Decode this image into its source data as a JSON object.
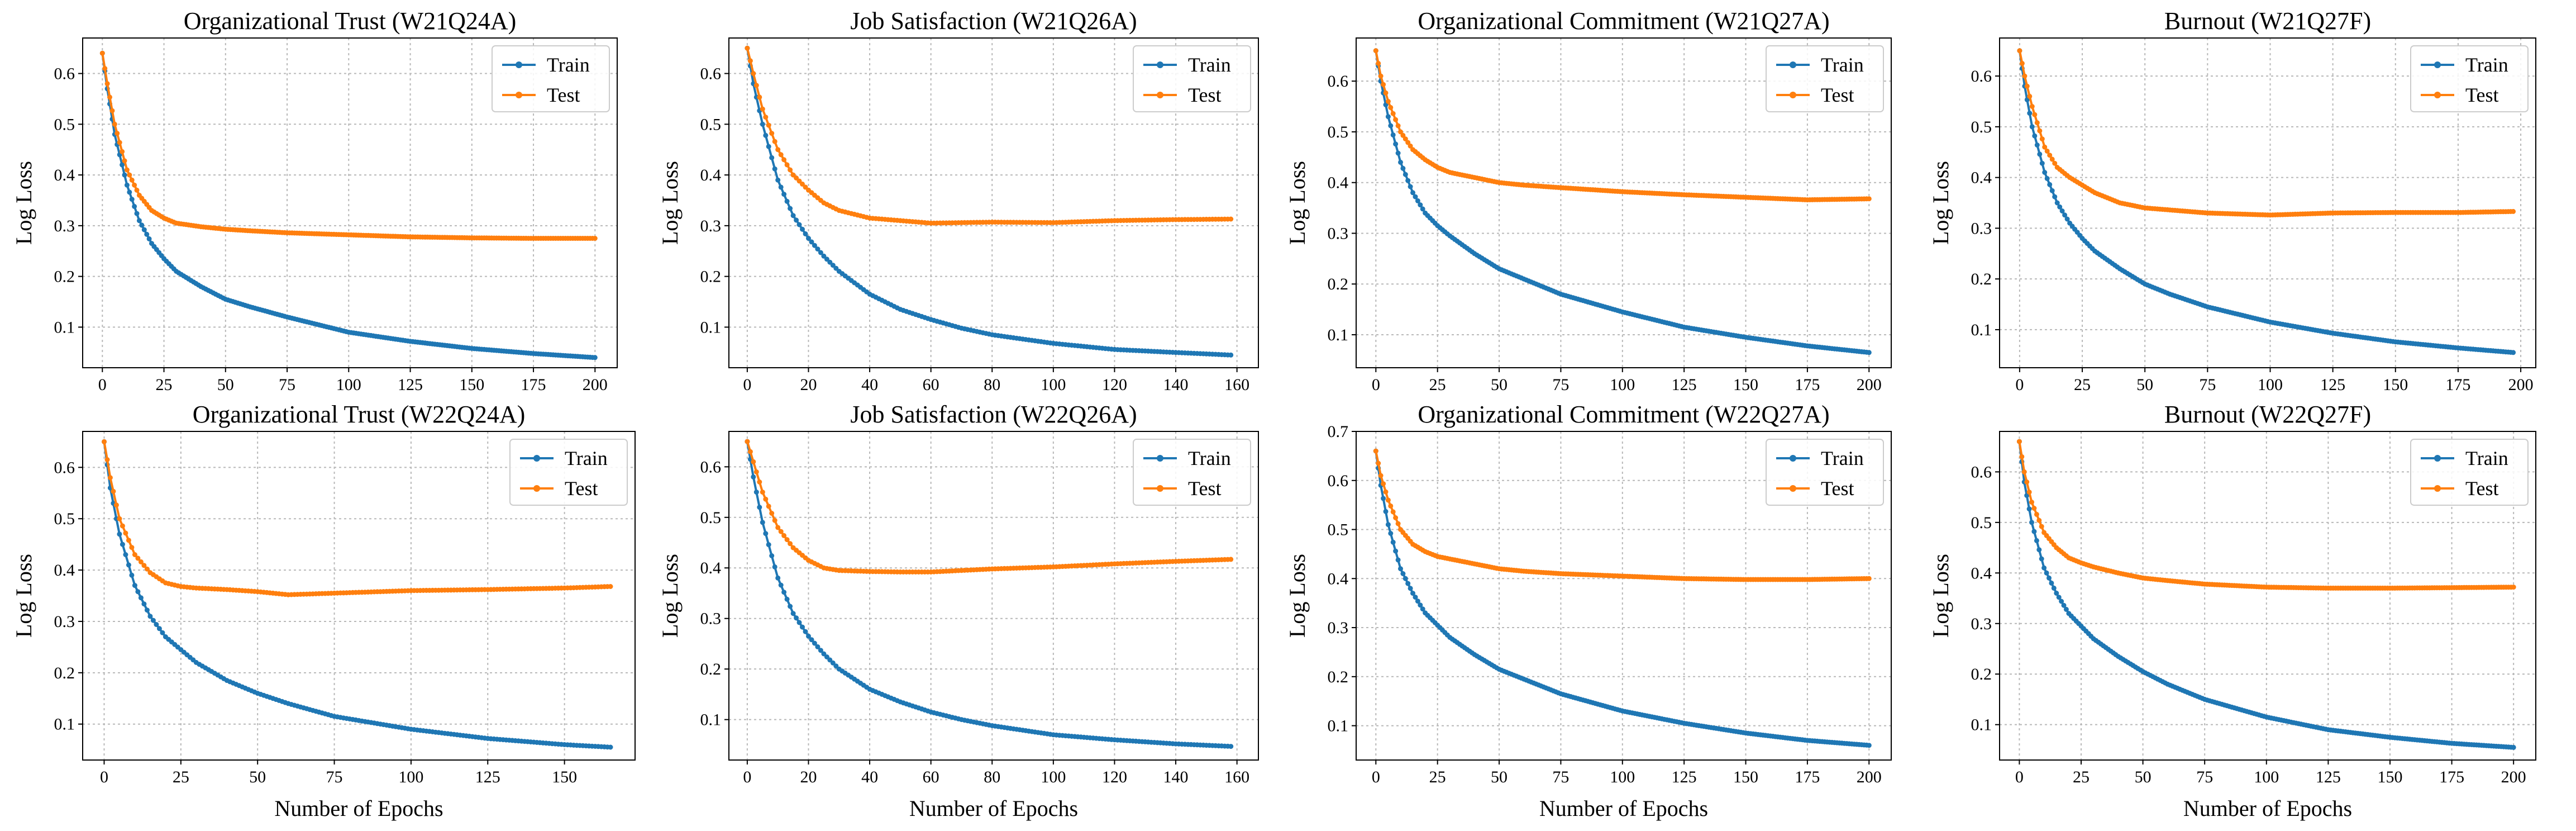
{
  "colors": {
    "train": "#1f77b4",
    "test": "#ff7f0e",
    "grid": "#b8b8b8"
  },
  "chart_data": [
    {
      "type": "line",
      "title": "Organizational Trust (W21Q24A)",
      "xlabel": "",
      "ylabel": "Log Loss",
      "xlim": [
        -8,
        209
      ],
      "ylim": [
        0.02,
        0.67
      ],
      "xticks": [
        0,
        25,
        50,
        75,
        100,
        125,
        150,
        175,
        200
      ],
      "yticks": [
        0.1,
        0.2,
        0.3,
        0.4,
        0.5,
        0.6
      ],
      "grid": true,
      "legend": "top-right",
      "series": [
        {
          "name": "Train",
          "x": [
            0,
            2,
            5,
            10,
            15,
            20,
            25,
            30,
            40,
            50,
            60,
            75,
            100,
            125,
            150,
            175,
            200
          ],
          "values": [
            0.64,
            0.57,
            0.48,
            0.38,
            0.31,
            0.265,
            0.235,
            0.21,
            0.18,
            0.155,
            0.14,
            0.12,
            0.09,
            0.072,
            0.058,
            0.048,
            0.04
          ]
        },
        {
          "name": "Test",
          "x": [
            0,
            2,
            5,
            10,
            15,
            20,
            25,
            30,
            40,
            50,
            60,
            75,
            100,
            125,
            150,
            175,
            200
          ],
          "values": [
            0.64,
            0.58,
            0.5,
            0.41,
            0.36,
            0.33,
            0.315,
            0.305,
            0.298,
            0.293,
            0.29,
            0.286,
            0.282,
            0.278,
            0.276,
            0.275,
            0.275
          ]
        }
      ]
    },
    {
      "type": "line",
      "title": "Job Satisfaction (W21Q26A)",
      "xlabel": "",
      "ylabel": "Log Loss",
      "xlim": [
        -6,
        167
      ],
      "ylim": [
        0.02,
        0.67
      ],
      "xticks": [
        0,
        20,
        40,
        60,
        80,
        100,
        120,
        140,
        160
      ],
      "yticks": [
        0.1,
        0.2,
        0.3,
        0.4,
        0.5,
        0.6
      ],
      "grid": true,
      "legend": "top-right",
      "series": [
        {
          "name": "Train",
          "x": [
            0,
            2,
            5,
            10,
            15,
            20,
            25,
            30,
            40,
            50,
            60,
            70,
            80,
            100,
            120,
            140,
            158
          ],
          "values": [
            0.65,
            0.58,
            0.5,
            0.39,
            0.32,
            0.275,
            0.24,
            0.21,
            0.165,
            0.135,
            0.115,
            0.098,
            0.085,
            0.068,
            0.056,
            0.05,
            0.045
          ]
        },
        {
          "name": "Test",
          "x": [
            0,
            2,
            5,
            10,
            15,
            20,
            25,
            30,
            40,
            50,
            60,
            70,
            80,
            100,
            120,
            140,
            158
          ],
          "values": [
            0.65,
            0.6,
            0.53,
            0.45,
            0.4,
            0.37,
            0.345,
            0.33,
            0.315,
            0.31,
            0.305,
            0.306,
            0.307,
            0.306,
            0.31,
            0.312,
            0.313
          ]
        }
      ]
    },
    {
      "type": "line",
      "title": "Organizational Commitment (W21Q27A)",
      "xlabel": "",
      "ylabel": "Log Loss",
      "xlim": [
        -8,
        209
      ],
      "ylim": [
        0.035,
        0.685
      ],
      "xticks": [
        0,
        25,
        50,
        75,
        100,
        125,
        150,
        175,
        200
      ],
      "yticks": [
        0.1,
        0.2,
        0.3,
        0.4,
        0.5,
        0.6
      ],
      "grid": true,
      "legend": "top-right",
      "series": [
        {
          "name": "Train",
          "x": [
            0,
            2,
            5,
            10,
            15,
            20,
            25,
            30,
            40,
            50,
            60,
            75,
            100,
            125,
            150,
            175,
            200
          ],
          "values": [
            0.66,
            0.6,
            0.53,
            0.44,
            0.38,
            0.34,
            0.315,
            0.295,
            0.26,
            0.23,
            0.21,
            0.18,
            0.145,
            0.115,
            0.095,
            0.078,
            0.065
          ]
        },
        {
          "name": "Test",
          "x": [
            0,
            2,
            5,
            10,
            15,
            20,
            25,
            30,
            40,
            50,
            60,
            75,
            100,
            125,
            150,
            175,
            200
          ],
          "values": [
            0.66,
            0.61,
            0.56,
            0.5,
            0.465,
            0.445,
            0.43,
            0.42,
            0.41,
            0.4,
            0.395,
            0.39,
            0.382,
            0.376,
            0.371,
            0.366,
            0.368
          ]
        }
      ]
    },
    {
      "type": "line",
      "title": "Burnout (W21Q27F)",
      "xlabel": "",
      "ylabel": "Log Loss",
      "xlim": [
        -8,
        206
      ],
      "ylim": [
        0.025,
        0.675
      ],
      "xticks": [
        0,
        25,
        50,
        75,
        100,
        125,
        150,
        175,
        200
      ],
      "yticks": [
        0.1,
        0.2,
        0.3,
        0.4,
        0.5,
        0.6
      ],
      "grid": true,
      "legend": "top-right",
      "series": [
        {
          "name": "Train",
          "x": [
            0,
            2,
            5,
            10,
            15,
            20,
            25,
            30,
            40,
            50,
            60,
            75,
            100,
            125,
            150,
            175,
            197
          ],
          "values": [
            0.65,
            0.58,
            0.5,
            0.41,
            0.35,
            0.31,
            0.28,
            0.255,
            0.22,
            0.19,
            0.17,
            0.145,
            0.115,
            0.093,
            0.076,
            0.064,
            0.055
          ]
        },
        {
          "name": "Test",
          "x": [
            0,
            2,
            5,
            10,
            15,
            20,
            25,
            30,
            40,
            50,
            60,
            75,
            100,
            125,
            150,
            175,
            197
          ],
          "values": [
            0.65,
            0.6,
            0.54,
            0.46,
            0.42,
            0.4,
            0.385,
            0.37,
            0.35,
            0.34,
            0.336,
            0.33,
            0.326,
            0.33,
            0.331,
            0.331,
            0.333
          ]
        }
      ]
    },
    {
      "type": "line",
      "title": "Organizational Trust (W22Q24A)",
      "xlabel": "Number of Epochs",
      "ylabel": "Log Loss",
      "xlim": [
        -7,
        173
      ],
      "ylim": [
        0.03,
        0.67
      ],
      "xticks": [
        0,
        25,
        50,
        75,
        100,
        125,
        150
      ],
      "yticks": [
        0.1,
        0.2,
        0.3,
        0.4,
        0.5,
        0.6
      ],
      "grid": true,
      "legend": "top-right",
      "series": [
        {
          "name": "Train",
          "x": [
            0,
            2,
            5,
            10,
            15,
            20,
            25,
            30,
            40,
            50,
            60,
            75,
            100,
            125,
            150,
            165
          ],
          "values": [
            0.65,
            0.56,
            0.47,
            0.37,
            0.31,
            0.27,
            0.245,
            0.22,
            0.185,
            0.16,
            0.14,
            0.115,
            0.09,
            0.072,
            0.06,
            0.055
          ]
        },
        {
          "name": "Test",
          "x": [
            0,
            2,
            5,
            10,
            15,
            20,
            25,
            30,
            40,
            50,
            60,
            75,
            100,
            125,
            150,
            165
          ],
          "values": [
            0.65,
            0.58,
            0.5,
            0.43,
            0.395,
            0.375,
            0.368,
            0.365,
            0.362,
            0.358,
            0.352,
            0.355,
            0.36,
            0.362,
            0.365,
            0.368
          ]
        }
      ]
    },
    {
      "type": "line",
      "title": "Job Satisfaction (W22Q26A)",
      "xlabel": "Number of Epochs",
      "ylabel": "Log Loss",
      "xlim": [
        -6,
        167
      ],
      "ylim": [
        0.02,
        0.67
      ],
      "xticks": [
        0,
        20,
        40,
        60,
        80,
        100,
        120,
        140,
        160
      ],
      "yticks": [
        0.1,
        0.2,
        0.3,
        0.4,
        0.5,
        0.6
      ],
      "grid": true,
      "legend": "top-right",
      "series": [
        {
          "name": "Train",
          "x": [
            0,
            2,
            5,
            10,
            15,
            20,
            25,
            30,
            40,
            50,
            60,
            70,
            80,
            100,
            120,
            140,
            158
          ],
          "values": [
            0.65,
            0.58,
            0.49,
            0.38,
            0.31,
            0.265,
            0.23,
            0.2,
            0.16,
            0.135,
            0.115,
            0.1,
            0.088,
            0.07,
            0.06,
            0.052,
            0.047
          ]
        },
        {
          "name": "Test",
          "x": [
            0,
            2,
            5,
            10,
            15,
            20,
            25,
            30,
            40,
            50,
            60,
            70,
            80,
            100,
            120,
            140,
            158
          ],
          "values": [
            0.65,
            0.61,
            0.55,
            0.48,
            0.44,
            0.415,
            0.4,
            0.395,
            0.393,
            0.392,
            0.392,
            0.395,
            0.398,
            0.402,
            0.408,
            0.413,
            0.417
          ]
        }
      ]
    },
    {
      "type": "line",
      "title": "Organizational Commitment (W22Q27A)",
      "xlabel": "Number of Epochs",
      "ylabel": "Log Loss",
      "xlim": [
        -8,
        209
      ],
      "ylim": [
        0.03,
        0.7
      ],
      "xticks": [
        0,
        25,
        50,
        75,
        100,
        125,
        150,
        175,
        200
      ],
      "yticks": [
        0.1,
        0.2,
        0.3,
        0.4,
        0.5,
        0.6,
        0.7
      ],
      "grid": true,
      "legend": "top-right",
      "series": [
        {
          "name": "Train",
          "x": [
            0,
            2,
            5,
            10,
            15,
            20,
            25,
            30,
            40,
            50,
            60,
            75,
            100,
            125,
            150,
            175,
            200
          ],
          "values": [
            0.66,
            0.59,
            0.51,
            0.42,
            0.37,
            0.33,
            0.305,
            0.28,
            0.245,
            0.215,
            0.195,
            0.165,
            0.13,
            0.105,
            0.085,
            0.07,
            0.06
          ]
        },
        {
          "name": "Test",
          "x": [
            0,
            2,
            5,
            10,
            15,
            20,
            25,
            30,
            40,
            50,
            60,
            75,
            100,
            125,
            150,
            175,
            200
          ],
          "values": [
            0.66,
            0.61,
            0.56,
            0.5,
            0.47,
            0.455,
            0.445,
            0.44,
            0.43,
            0.42,
            0.415,
            0.41,
            0.405,
            0.4,
            0.398,
            0.398,
            0.4
          ]
        }
      ]
    },
    {
      "type": "line",
      "title": "Burnout (W22Q27F)",
      "xlabel": "Number of Epochs",
      "ylabel": "Log Loss",
      "xlim": [
        -8,
        209
      ],
      "ylim": [
        0.03,
        0.68
      ],
      "xticks": [
        0,
        25,
        50,
        75,
        100,
        125,
        150,
        175,
        200
      ],
      "yticks": [
        0.1,
        0.2,
        0.3,
        0.4,
        0.5,
        0.6
      ],
      "grid": true,
      "legend": "top-right",
      "series": [
        {
          "name": "Train",
          "x": [
            0,
            2,
            5,
            10,
            15,
            20,
            25,
            30,
            40,
            50,
            60,
            75,
            100,
            125,
            150,
            175,
            200
          ],
          "values": [
            0.66,
            0.58,
            0.5,
            0.41,
            0.36,
            0.32,
            0.295,
            0.27,
            0.235,
            0.205,
            0.18,
            0.15,
            0.115,
            0.09,
            0.075,
            0.063,
            0.055
          ]
        },
        {
          "name": "Test",
          "x": [
            0,
            2,
            5,
            10,
            15,
            20,
            25,
            30,
            40,
            50,
            60,
            75,
            100,
            125,
            150,
            175,
            200
          ],
          "values": [
            0.66,
            0.6,
            0.54,
            0.48,
            0.45,
            0.43,
            0.42,
            0.412,
            0.4,
            0.39,
            0.385,
            0.378,
            0.372,
            0.37,
            0.37,
            0.371,
            0.372
          ]
        }
      ]
    }
  ]
}
